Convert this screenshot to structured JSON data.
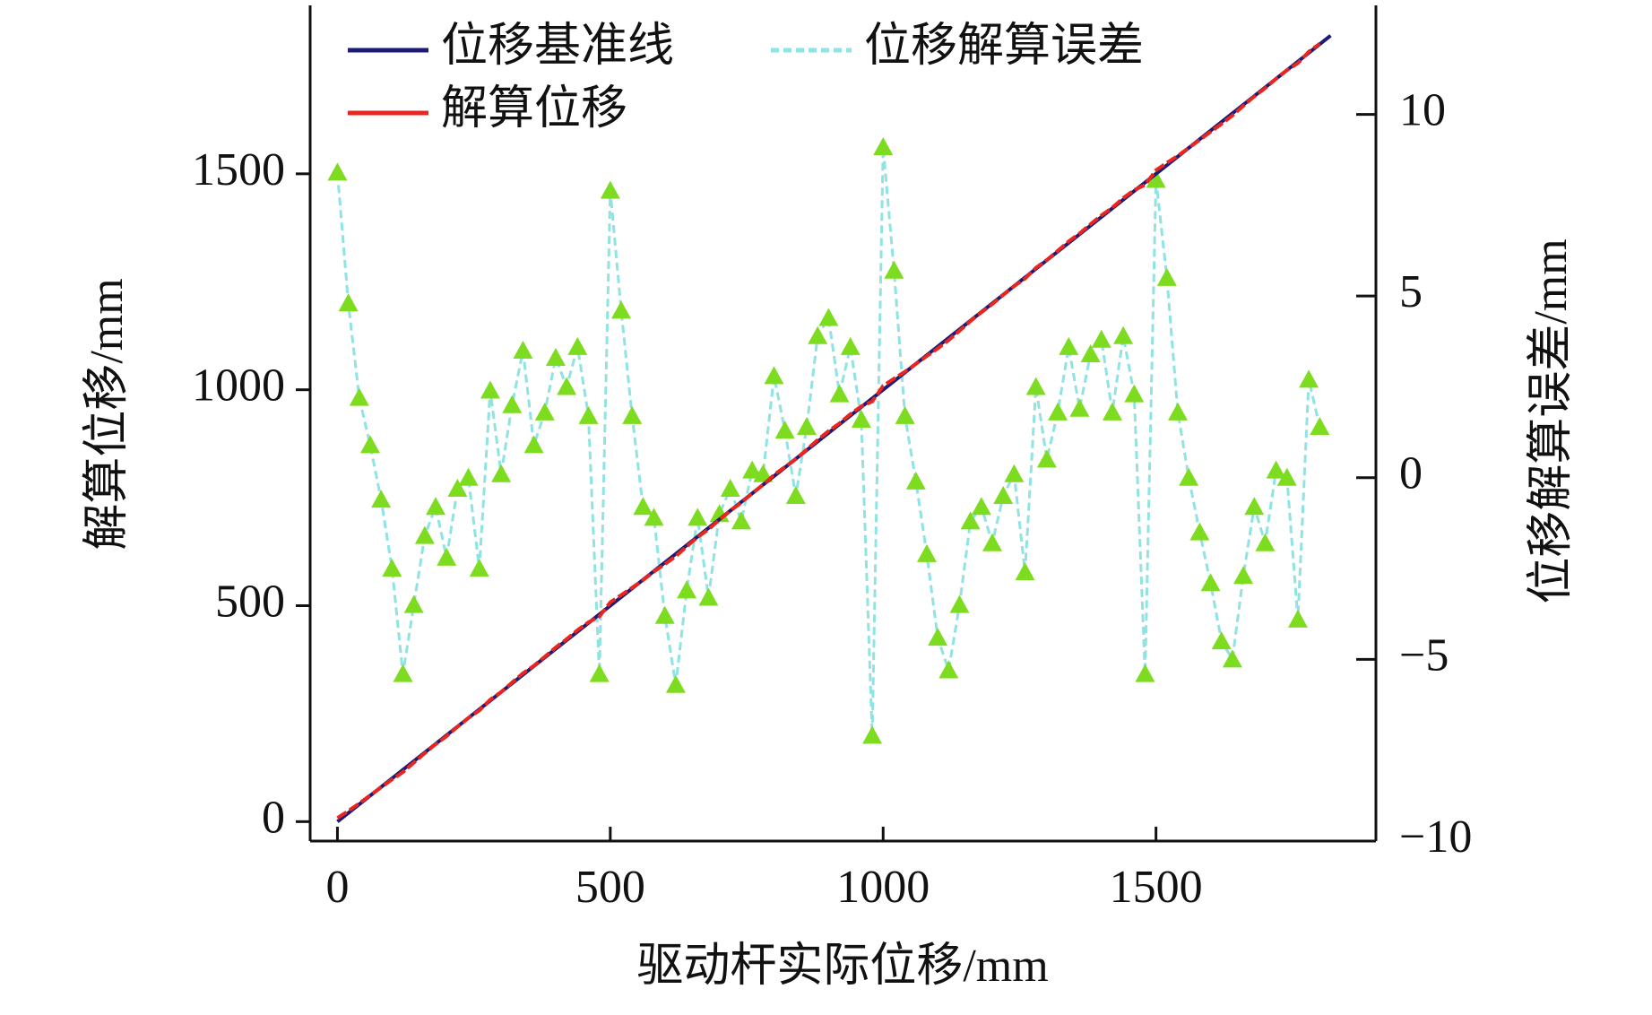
{
  "chart_data": {
    "type": "line",
    "xlabel": "驱动杆实际位移/mm",
    "ylabel": "解算位移/mm",
    "y2label": "位移解算误差/mm",
    "x": [
      0,
      20,
      40,
      60,
      80,
      100,
      120,
      140,
      160,
      180,
      200,
      220,
      240,
      260,
      280,
      300,
      320,
      340,
      360,
      380,
      400,
      420,
      440,
      460,
      480,
      500,
      520,
      540,
      560,
      580,
      600,
      620,
      640,
      660,
      680,
      700,
      720,
      740,
      760,
      780,
      800,
      820,
      840,
      860,
      880,
      900,
      920,
      940,
      960,
      980,
      1000,
      1020,
      1040,
      1060,
      1080,
      1100,
      1120,
      1140,
      1160,
      1180,
      1200,
      1220,
      1240,
      1260,
      1280,
      1300,
      1320,
      1340,
      1360,
      1380,
      1400,
      1420,
      1440,
      1460,
      1480,
      1500,
      1520,
      1540,
      1560,
      1580,
      1600,
      1620,
      1640,
      1660,
      1680,
      1700,
      1720,
      1740,
      1760,
      1780,
      1800
    ],
    "series": [
      {
        "name": "位移基准线",
        "color": "#1c1c78",
        "x": [
          0,
          1820
        ],
        "values": [
          0,
          1820
        ]
      },
      {
        "name": "解算位移",
        "color": "#e8251f",
        "values": [
          8.4,
          24.8,
          42.2,
          60.9,
          79.4,
          97.5,
          114.6,
          136.5,
          158.4,
          179.2,
          197.8,
          219.7,
          240,
          257.5,
          282.4,
          300.1,
          322,
          343.5,
          360.9,
          381.8,
          403.3,
          422.5,
          443.6,
          461.7,
          474.6,
          507.9,
          524.6,
          541.7,
          559.2,
          578.9,
          596.2,
          614.3,
          636.9,
          658.9,
          676.7,
          699,
          719.7,
          738.8,
          760.2,
          780.1,
          802.8,
          821.3,
          839.5,
          861.4,
          883.9,
          904.4,
          922.3,
          943.6,
          961.6,
          972.9,
          1009.1,
          1025.7,
          1041.7,
          1059.9,
          1077.9,
          1095.6,
          1114.7,
          1136.5,
          1158.8,
          1179.2,
          1198.2,
          1219.5,
          1240.1,
          1257.4,
          1282.5,
          1300.5,
          1321.8,
          1343.6,
          1361.9,
          1383.4,
          1403.8,
          1421.8,
          1443.9,
          1462.3,
          1474.6,
          1508.2,
          1525.5,
          1541.8,
          1560,
          1578.5,
          1597.1,
          1615.5,
          1635,
          1657.3,
          1679.2,
          1698.2,
          1720.2,
          1740,
          1756.1,
          1782.7,
          1801.4
        ]
      },
      {
        "name": "位移解算误差",
        "color": "#8fe3e3",
        "marker_color": "#7ddc1f",
        "axis": "y2",
        "values": [
          8.4,
          4.8,
          2.2,
          0.9,
          -0.6,
          -2.5,
          -5.4,
          -3.5,
          -1.6,
          -0.8,
          -2.2,
          -0.3,
          0.0,
          -2.5,
          2.4,
          0.1,
          2.0,
          3.5,
          0.9,
          1.8,
          3.3,
          2.5,
          3.6,
          1.7,
          -5.4,
          7.9,
          4.6,
          1.7,
          -0.8,
          -1.1,
          -3.8,
          -5.7,
          -3.1,
          -1.1,
          -3.3,
          -1.0,
          -0.3,
          -1.2,
          0.2,
          0.1,
          2.8,
          1.3,
          -0.5,
          1.4,
          3.9,
          4.4,
          2.3,
          3.6,
          1.6,
          -7.1,
          9.1,
          5.7,
          1.7,
          -0.1,
          -2.1,
          -4.4,
          -5.3,
          -3.5,
          -1.2,
          -0.8,
          -1.8,
          -0.5,
          0.1,
          -2.6,
          2.5,
          0.5,
          1.8,
          3.6,
          1.9,
          3.4,
          3.8,
          1.8,
          3.9,
          2.3,
          -5.4,
          8.2,
          5.5,
          1.8,
          0.0,
          -1.5,
          -2.9,
          -4.5,
          -5.0,
          -2.7,
          -0.8,
          -1.8,
          0.2,
          0.0,
          -3.9,
          2.7,
          1.4
        ]
      }
    ],
    "xlim": [
      -50,
      1903
    ],
    "xticks": [
      0,
      500,
      1000,
      1500
    ],
    "ylim": [
      -45,
      1890
    ],
    "yticks": [
      0,
      500,
      1000,
      1500
    ],
    "y2lim": [
      -10,
      13
    ],
    "y2ticks": [
      {
        "value": -10,
        "label": "−10"
      },
      {
        "value": -5,
        "label": "−5"
      },
      0,
      5,
      10
    ]
  }
}
